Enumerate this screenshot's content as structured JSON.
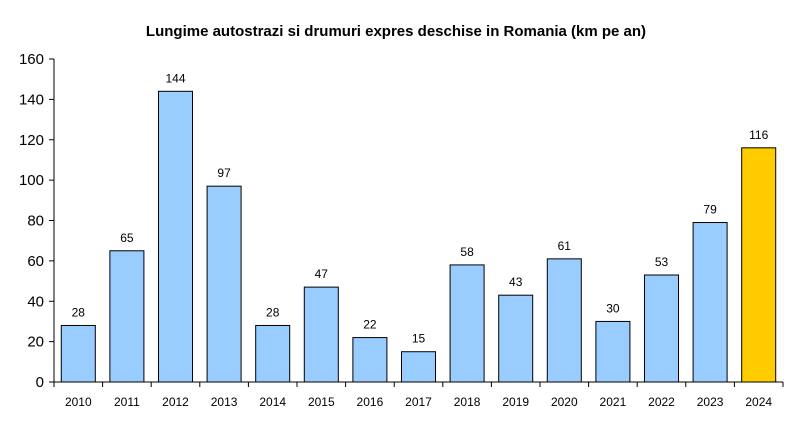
{
  "chart_data": {
    "type": "bar",
    "title": "Lungime autostrazi si drumuri expres deschise in Romania (km pe an)",
    "xlabel": "",
    "ylabel": "",
    "categories": [
      "2010",
      "2011",
      "2012",
      "2013",
      "2014",
      "2015",
      "2016",
      "2017",
      "2018",
      "2019",
      "2020",
      "2021",
      "2022",
      "2023",
      "2024"
    ],
    "values": [
      28,
      65,
      144,
      97,
      28,
      47,
      22,
      15,
      58,
      43,
      61,
      30,
      53,
      79,
      116
    ],
    "data_labels": [
      "28",
      "65",
      "144",
      "97",
      "28",
      "47",
      "22",
      "15",
      "58",
      "43",
      "61",
      "30",
      "53",
      "79",
      "116"
    ],
    "ylim": [
      0,
      160
    ],
    "yticks": [
      0,
      20,
      40,
      60,
      80,
      100,
      120,
      140,
      160
    ],
    "ytick_labels": [
      "0",
      "20",
      "40",
      "60",
      "80",
      "100",
      "120",
      "140",
      "160"
    ],
    "grid": false,
    "legend": "none",
    "colors": {
      "bar": "#99ccff",
      "highlight_bar": "#ffcc00",
      "highlight_category": "2024",
      "outline": "#000000"
    }
  }
}
